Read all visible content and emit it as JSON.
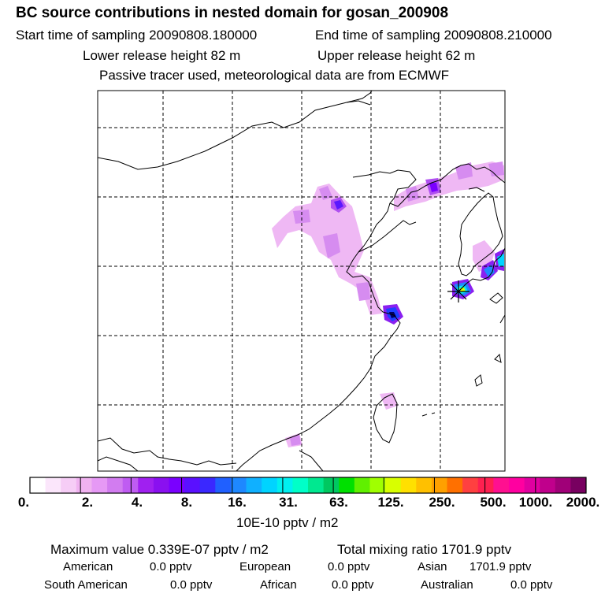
{
  "header": {
    "title": "BC  source contributions in nested domain for gosan_200908",
    "start_sampling": "Start time of sampling 20090808.180000",
    "end_sampling": "End time of sampling 20090808.210000",
    "lower_release": "Lower release height   82 m",
    "upper_release": "Upper release height   62 m",
    "tracer_note": "Passive tracer used, meteorological data are from ECMWF"
  },
  "colorbar": {
    "tick_labels": [
      "0.",
      "2.",
      "4.",
      "8.",
      "16.",
      "31.",
      "63.",
      "125.",
      "250.",
      "500.",
      "1000.",
      "2000."
    ],
    "colors": [
      "#ffffff",
      "#fbe6fb",
      "#f6cdf6",
      "#f0b2f0",
      "#e699f5",
      "#d27cf0",
      "#bf5cf2",
      "#a020f0",
      "#8a10f0",
      "#7a00ff",
      "#5a10ff",
      "#3a28ff",
      "#2060ff",
      "#1e88ff",
      "#10b0ff",
      "#00d4ff",
      "#00f0f0",
      "#00ffc8",
      "#00e890",
      "#00c860",
      "#00e000",
      "#60f000",
      "#a0ff00",
      "#d8ff00",
      "#ffe000",
      "#ffc000",
      "#ffa000",
      "#ff7000",
      "#ff4040",
      "#ff2050",
      "#ff1090",
      "#ff00a0",
      "#e000a0",
      "#c0008c",
      "#a00078",
      "#780060"
    ],
    "units": "10E-10 pptv / m2"
  },
  "summary": {
    "max_value": "Maximum value  0.339E-07 pptv / m2",
    "total_mixing": "Total mixing ratio      1701.9 pptv"
  },
  "sources": [
    {
      "label": "American",
      "value": "0.0 pptv"
    },
    {
      "label": "European",
      "value": "0.0 pptv"
    },
    {
      "label": "Asian",
      "value": "1701.9 pptv"
    },
    {
      "label": "South American",
      "value": "0.0 pptv"
    },
    {
      "label": "African",
      "value": "0.0 pptv"
    },
    {
      "label": "Australian",
      "value": "0.0 pptv"
    }
  ]
}
